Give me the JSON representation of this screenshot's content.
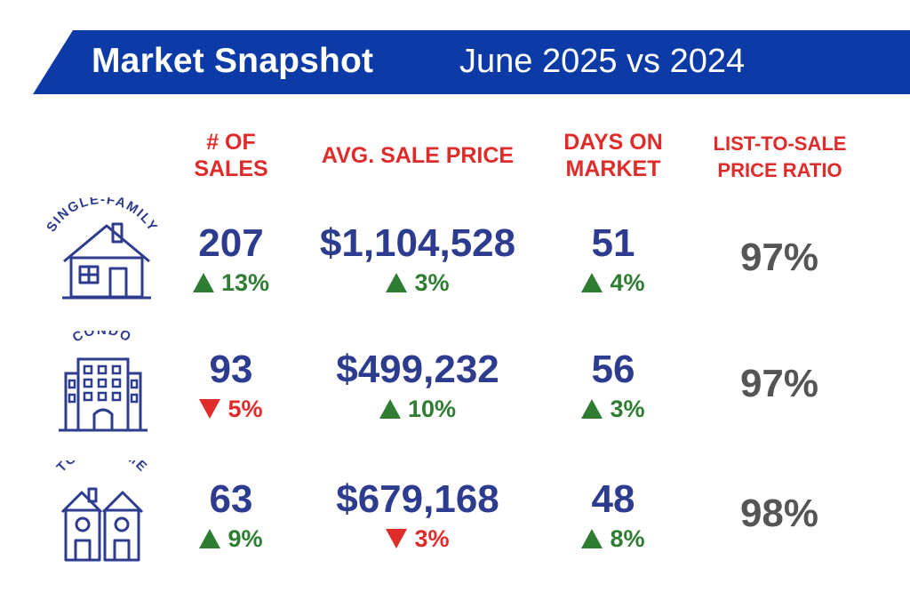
{
  "header": {
    "title": "Market Snapshot",
    "subtitle": "June 2025 vs 2024"
  },
  "colors": {
    "banner": "#0c3aa6",
    "value": "#2e3c8f",
    "header_red": "#e02b2b",
    "up_green": "#2e7d32",
    "down_red": "#e02b2b",
    "ratio_gray": "#555555"
  },
  "columns": {
    "sales_line1": "# OF",
    "sales_line2": "SALES",
    "price": "AVG. SALE PRICE",
    "dom_line1": "DAYS ON",
    "dom_line2": "MARKET",
    "ratio_line1": "LIST-TO-SALE",
    "ratio_line2": "PRICE RATIO"
  },
  "rows": [
    {
      "label": "SINGLE-FAMILY",
      "icon": "house-icon",
      "sales": "207",
      "sales_change": "13%",
      "sales_dir": "up",
      "price": "$1,104,528",
      "price_change": "3%",
      "price_dir": "up",
      "dom": "51",
      "dom_change": "4%",
      "dom_dir": "up",
      "ratio": "97%"
    },
    {
      "label": "CONDO",
      "icon": "condo-building-icon",
      "sales": "93",
      "sales_change": "5%",
      "sales_dir": "down",
      "price": "$499,232",
      "price_change": "10%",
      "price_dir": "up",
      "dom": "56",
      "dom_change": "3%",
      "dom_dir": "up",
      "ratio": "97%"
    },
    {
      "label": "TOWNHOME",
      "icon": "townhome-icon",
      "sales": "63",
      "sales_change": "9%",
      "sales_dir": "up",
      "price": "$679,168",
      "price_change": "3%",
      "price_dir": "down",
      "dom": "48",
      "dom_change": "8%",
      "dom_dir": "up",
      "ratio": "98%"
    }
  ]
}
